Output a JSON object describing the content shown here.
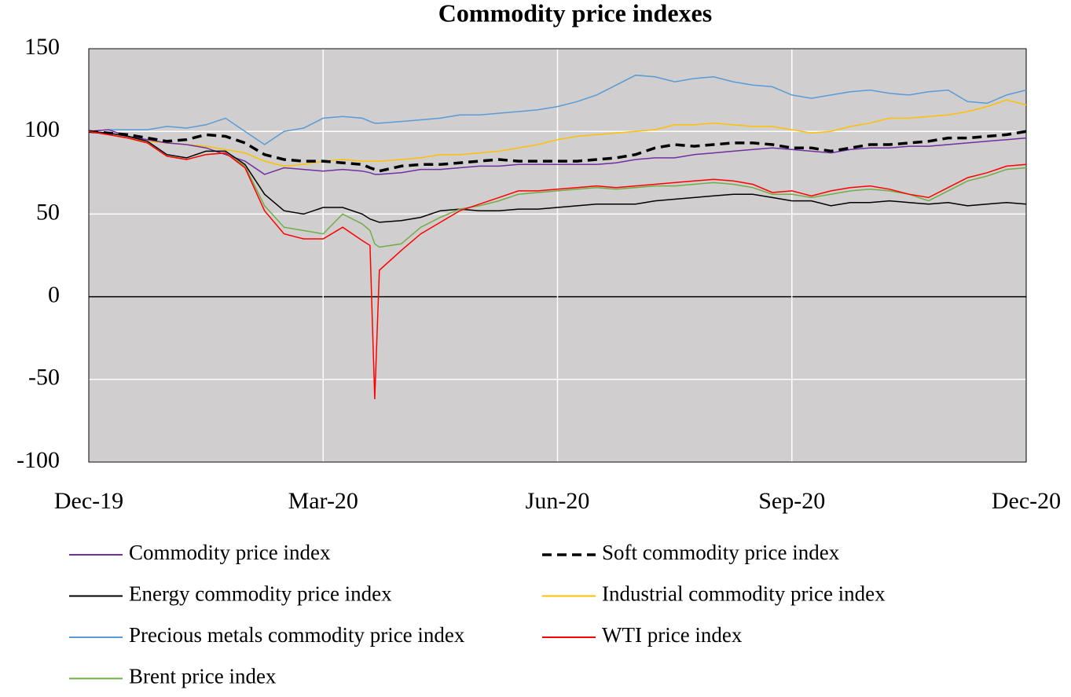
{
  "chart_data": {
    "type": "line",
    "title": "Commodity price indexes",
    "x": [
      0,
      0.25,
      0.5,
      0.75,
      1,
      1.25,
      1.5,
      1.75,
      2,
      2.25,
      2.5,
      2.75,
      3,
      3.25,
      3.5,
      3.6,
      3.66,
      3.72,
      4,
      4.25,
      4.5,
      4.75,
      5,
      5.25,
      5.5,
      5.75,
      6,
      6.25,
      6.5,
      6.75,
      7,
      7.25,
      7.5,
      7.75,
      8,
      8.25,
      8.5,
      8.75,
      9,
      9.25,
      9.5,
      9.75,
      10,
      10.25,
      10.5,
      10.75,
      11,
      11.25,
      11.5,
      11.75,
      12
    ],
    "xlim": [
      0,
      12
    ],
    "xticks": [
      {
        "value": 0,
        "label": "Dec-19"
      },
      {
        "value": 3,
        "label": "Mar-20"
      },
      {
        "value": 6,
        "label": "Jun-20"
      },
      {
        "value": 9,
        "label": "Sep-20"
      },
      {
        "value": 12,
        "label": "Dec-20"
      }
    ],
    "ylim": [
      -100,
      150
    ],
    "yticks": [
      -100,
      -50,
      0,
      50,
      100,
      150
    ],
    "grid": true,
    "series": [
      {
        "name": "Commodity price index",
        "color": "#7030a0",
        "values": [
          100,
          101,
          97,
          95,
          93,
          92,
          90,
          86,
          82,
          74,
          78,
          77,
          76,
          77,
          76,
          75,
          74,
          74,
          75,
          77,
          77,
          78,
          79,
          79,
          80,
          80,
          80,
          80,
          80,
          81,
          83,
          84,
          84,
          86,
          87,
          88,
          89,
          90,
          89,
          88,
          87,
          89,
          90,
          90,
          91,
          91,
          92,
          93,
          94,
          95,
          96
        ]
      },
      {
        "name": "Soft commodity price index",
        "color": "#000000",
        "dashed": true,
        "values": [
          100,
          99,
          98,
          96,
          94,
          95,
          98,
          97,
          93,
          86,
          83,
          82,
          82,
          81,
          80,
          78,
          77,
          76,
          79,
          80,
          80,
          81,
          82,
          83,
          82,
          82,
          82,
          82,
          83,
          84,
          86,
          90,
          92,
          91,
          92,
          93,
          93,
          92,
          90,
          90,
          88,
          90,
          92,
          92,
          93,
          94,
          96,
          96,
          97,
          98,
          100
        ]
      },
      {
        "name": "Energy commodity price index",
        "color": "#000000",
        "values": [
          100,
          99,
          97,
          94,
          86,
          84,
          88,
          88,
          80,
          62,
          52,
          50,
          54,
          54,
          50,
          47,
          46,
          45,
          46,
          48,
          52,
          53,
          52,
          52,
          53,
          53,
          54,
          55,
          56,
          56,
          56,
          58,
          59,
          60,
          61,
          62,
          62,
          60,
          58,
          58,
          55,
          57,
          57,
          58,
          57,
          56,
          57,
          55,
          56,
          57,
          56
        ]
      },
      {
        "name": "Industrial commodity price index",
        "color": "#ffc000",
        "values": [
          100,
          98,
          96,
          94,
          93,
          92,
          91,
          89,
          87,
          82,
          79,
          80,
          82,
          83,
          82,
          82,
          82,
          82,
          83,
          84,
          86,
          86,
          87,
          88,
          90,
          92,
          95,
          97,
          98,
          99,
          100,
          101,
          104,
          104,
          105,
          104,
          103,
          103,
          101,
          99,
          100,
          103,
          105,
          108,
          108,
          109,
          110,
          112,
          115,
          119,
          116
        ]
      },
      {
        "name": "Precious metals commodity price index",
        "color": "#5b9bd5",
        "values": [
          100,
          101,
          101,
          101,
          103,
          102,
          104,
          108,
          100,
          92,
          100,
          102,
          108,
          109,
          108,
          106,
          105,
          105,
          106,
          107,
          108,
          110,
          110,
          111,
          112,
          113,
          115,
          118,
          122,
          128,
          134,
          133,
          130,
          132,
          133,
          130,
          128,
          127,
          122,
          120,
          122,
          124,
          125,
          123,
          122,
          124,
          125,
          118,
          117,
          122,
          125
        ]
      },
      {
        "name": "WTI price index",
        "color": "#ff0000",
        "values": [
          100,
          98,
          96,
          93,
          85,
          83,
          86,
          87,
          78,
          52,
          38,
          35,
          35,
          42,
          34,
          31,
          -62,
          16,
          28,
          38,
          45,
          52,
          56,
          60,
          64,
          64,
          65,
          66,
          67,
          66,
          67,
          68,
          69,
          70,
          71,
          70,
          68,
          63,
          64,
          61,
          64,
          66,
          67,
          65,
          62,
          60,
          66,
          72,
          75,
          79,
          80
        ]
      },
      {
        "name": "Brent price index",
        "color": "#70ad47",
        "values": [
          100,
          98,
          96,
          93,
          85,
          83,
          86,
          87,
          79,
          55,
          42,
          40,
          38,
          50,
          44,
          40,
          32,
          30,
          32,
          42,
          48,
          53,
          55,
          58,
          62,
          63,
          64,
          65,
          66,
          65,
          66,
          67,
          67,
          68,
          69,
          68,
          66,
          62,
          62,
          60,
          62,
          64,
          65,
          64,
          62,
          58,
          64,
          70,
          73,
          77,
          78
        ]
      }
    ]
  }
}
